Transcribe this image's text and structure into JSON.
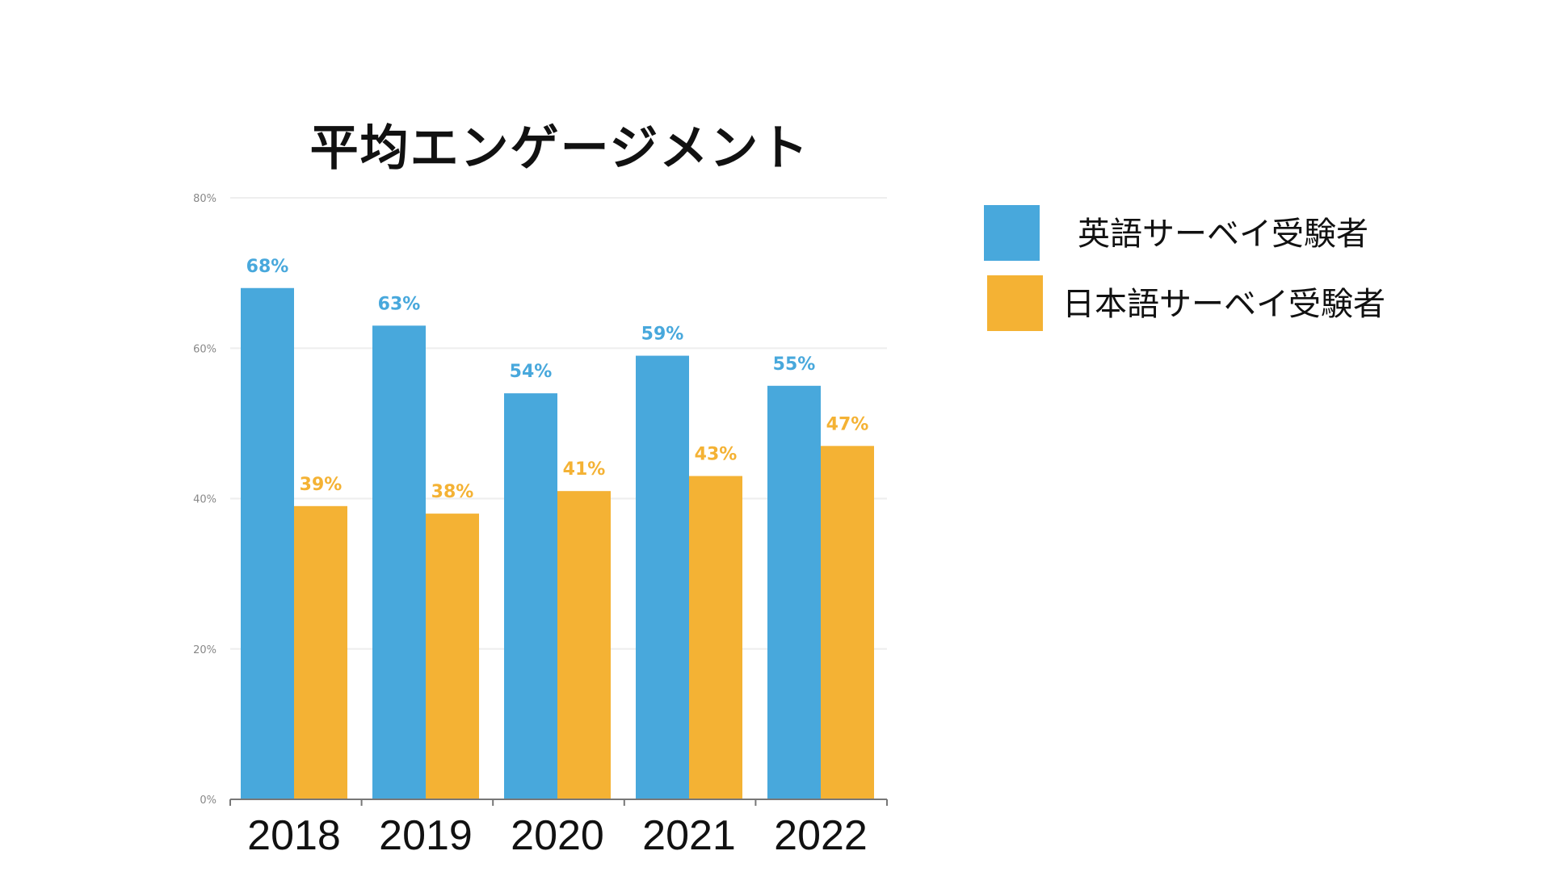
{
  "chart_data": {
    "type": "bar",
    "title": "平均エンゲージメント",
    "categories": [
      "2018",
      "2019",
      "2020",
      "2021",
      "2022"
    ],
    "series": [
      {
        "name": "英語サーベイ受験者",
        "values": [
          68,
          63,
          54,
          59,
          55
        ],
        "labels": [
          "68%",
          "63%",
          "54%",
          "59%",
          "55%"
        ],
        "color": "#48A8DC"
      },
      {
        "name": "日本語サーベイ受験者",
        "values": [
          39,
          38,
          41,
          43,
          47
        ],
        "labels": [
          "39%",
          "38%",
          "41%",
          "43%",
          "47%"
        ],
        "color": "#F4B234"
      }
    ],
    "ylim": [
      0,
      80
    ],
    "yticks": [
      0,
      20,
      40,
      60,
      80
    ],
    "ytick_labels": [
      "0%",
      "20%",
      "40%",
      "60%",
      "80%"
    ],
    "xlabel": "",
    "ylabel": "",
    "grid": true,
    "legend_position": "right"
  }
}
